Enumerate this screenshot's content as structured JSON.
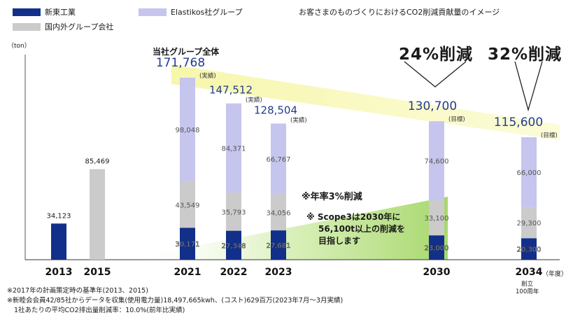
{
  "page_title": "お客さまのものづくりにおけるCO2削減貢献量のイメージ",
  "legend": [
    {
      "label": "新東工業",
      "color": "#12308a"
    },
    {
      "label": "Elastikos社グループ",
      "color": "#c5c5ee"
    },
    {
      "label": "国内外グループ会社",
      "color": "#cbcbcb"
    }
  ],
  "y_unit_label": "（ton）",
  "x_unit_label": "（年度）",
  "group_total_label": "当社グループ全体",
  "reduction_2030": "24%削減",
  "reduction_2034": "32%削減",
  "annual_rate_note": "※年率3%削減",
  "scope3_note": [
    "※ Scope3は2030年に",
    "56,100t以上の削減を",
    "目指します"
  ],
  "anniversary_label": [
    "創立",
    "100周年"
  ],
  "footnotes": [
    "※2017年の計画策定時の基準年(2013、2015)",
    "※新睦会会員42/85社からデータを収集(使用電力量)18,497,665kwh、(コスト)629百万(2023年7月～3月実績)",
    "1社あたりの平均CO2排出量削減率：10.0%(前年比実績)"
  ],
  "chart_data": {
    "type": "bar",
    "stacked": true,
    "categories": [
      "2013",
      "2015",
      "2021",
      "2022",
      "2023",
      "2030",
      "2034"
    ],
    "series": [
      {
        "name": "新東工業",
        "color": "#12308a",
        "values": [
          34123,
          null,
          30171,
          27348,
          27681,
          23000,
          20300
        ]
      },
      {
        "name": "国内外グループ会社",
        "color": "#cbcbcb",
        "values": [
          null,
          85469,
          43549,
          35793,
          34056,
          33100,
          29300
        ]
      },
      {
        "name": "Elastikos社グループ",
        "color": "#c5c5ee",
        "values": [
          null,
          null,
          98048,
          84371,
          66767,
          74600,
          66000
        ]
      }
    ],
    "segment_labels": [
      [
        "34,123",
        null,
        null
      ],
      [
        null,
        "85,469",
        null
      ],
      [
        "30,171",
        "43,549",
        "98,048"
      ],
      [
        "27,348",
        "35,793",
        "84,371"
      ],
      [
        "27,681",
        "34,056",
        "66,767"
      ],
      [
        "23,000",
        "33,100",
        "74,600"
      ],
      [
        "20,300",
        "29,300",
        "66,000"
      ]
    ],
    "total_labels": [
      null,
      null,
      "171,768",
      "147,512",
      "128,504",
      "130,700",
      "115,600"
    ],
    "total_tags": [
      null,
      null,
      "(実績)",
      "(実績)",
      "(実績)",
      "(目標)",
      "(目標)"
    ],
    "ylim": [
      0,
      180000
    ],
    "grid": false
  }
}
